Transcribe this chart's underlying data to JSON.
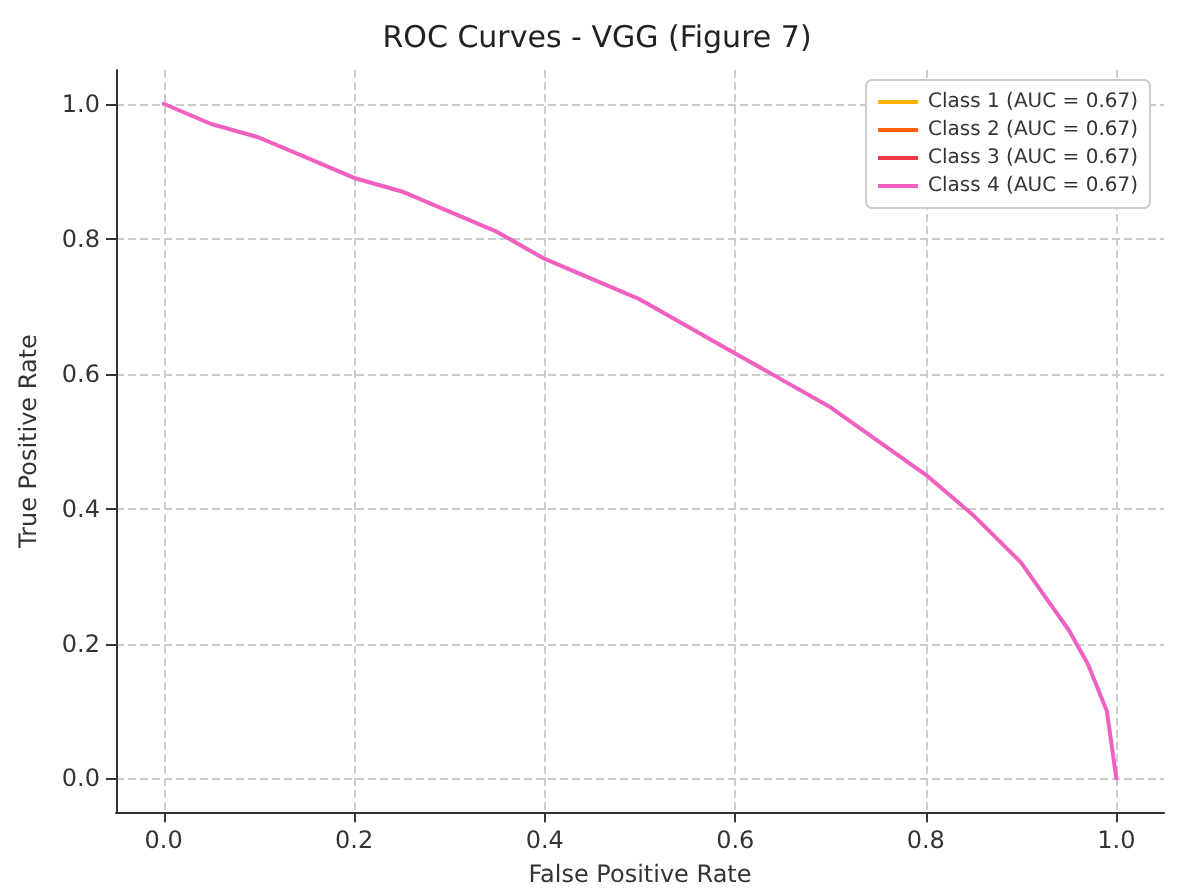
{
  "chart_data": {
    "type": "line",
    "title": "ROC Curves - VGG (Figure 7)",
    "xlabel": "False Positive Rate",
    "ylabel": "True Positive Rate",
    "x": [
      0,
      0.05,
      0.1,
      0.15,
      0.2,
      0.25,
      0.3,
      0.35,
      0.4,
      0.45,
      0.5,
      0.55,
      0.6,
      0.65,
      0.7,
      0.75,
      0.8,
      0.85,
      0.9,
      0.93,
      0.95,
      0.97,
      0.99,
      1
    ],
    "series": [
      {
        "name": "Class 1 (AUC = 0.67)",
        "color": "#ffb000",
        "values": [
          null,
          null,
          null,
          null,
          null,
          null,
          null,
          null,
          null,
          null,
          null,
          null,
          null,
          null,
          null,
          null,
          null,
          null,
          null,
          null,
          null,
          null,
          null,
          null
        ]
      },
      {
        "name": "Class 2 (AUC = 0.67)",
        "color": "#fe6100",
        "values": [
          null,
          null,
          null,
          null,
          null,
          null,
          null,
          null,
          null,
          null,
          null,
          null,
          null,
          null,
          null,
          null,
          null,
          null,
          null,
          null,
          null,
          null,
          null,
          null
        ]
      },
      {
        "name": "Class 3 (AUC = 0.67)",
        "color": "#f0384a",
        "values": [
          null,
          null,
          null,
          null,
          null,
          null,
          null,
          null,
          null,
          null,
          null,
          null,
          null,
          null,
          null,
          null,
          null,
          null,
          null,
          null,
          null,
          null,
          null,
          null
        ]
      },
      {
        "name": "Class 4 (AUC = 0.67)",
        "color": "#f060c0",
        "values": [
          1,
          0.97,
          0.95,
          0.92,
          0.89,
          0.87,
          0.84,
          0.81,
          0.77,
          0.74,
          0.71,
          0.67,
          0.63,
          0.59,
          0.55,
          0.5,
          0.45,
          0.39,
          0.32,
          0.26,
          0.22,
          0.17,
          0.1,
          0
        ]
      }
    ],
    "xlim": [
      -0.05,
      1.05
    ],
    "xticks": [
      {
        "value": 0,
        "label": "0.0"
      },
      0.2,
      0.4,
      0.6,
      0.8,
      {
        "value": 1,
        "label": "1.0"
      }
    ],
    "ylim": [
      -0.05,
      1.05
    ],
    "yticks": [
      {
        "value": 0,
        "label": "0.0"
      },
      0.2,
      0.4,
      0.6,
      0.8,
      {
        "value": 1,
        "label": "1.0"
      }
    ],
    "grid": true,
    "legend": "top right",
    "marker": "none",
    "line_style": "solid"
  }
}
